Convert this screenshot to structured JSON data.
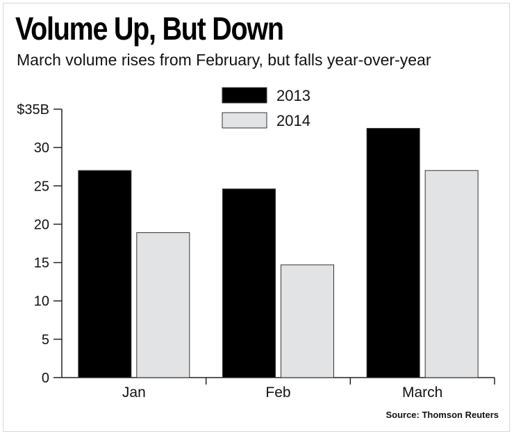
{
  "header": {
    "title": "Volume Up, But Down",
    "subtitle": "March volume rises from February, but falls year-over-year"
  },
  "footer": {
    "source": "Source: Thomson Reuters"
  },
  "chart_data": {
    "type": "bar",
    "categories": [
      "Jan",
      "Feb",
      "March"
    ],
    "series": [
      {
        "name": "2013",
        "values": [
          27,
          24.6,
          32.5
        ],
        "color": "#000000"
      },
      {
        "name": "2014",
        "values": [
          18.9,
          14.7,
          27
        ],
        "color": "#e2e3e5"
      }
    ],
    "yticks": [
      0,
      5,
      10,
      15,
      20,
      25,
      30,
      35
    ],
    "ytick_labels": [
      "0",
      "5",
      "10",
      "15",
      "20",
      "25",
      "30",
      "$35B"
    ],
    "ylim": [
      0,
      35
    ],
    "xlabel": "",
    "ylabel": "",
    "legend_position": "top-center",
    "grid": false
  }
}
